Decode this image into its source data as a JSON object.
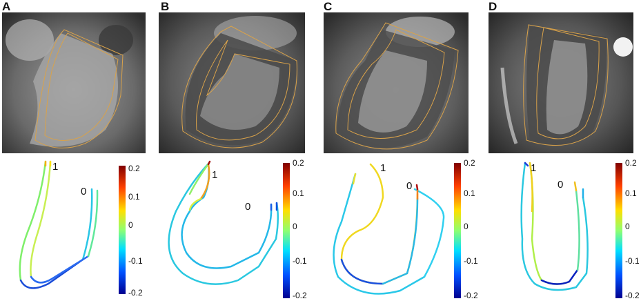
{
  "panels": [
    {
      "letter": "A",
      "point_labels": [
        "1",
        "0"
      ],
      "colorbar_ticks": [
        "0.2",
        "0.1",
        "0",
        "-0.1",
        "-0.2"
      ]
    },
    {
      "letter": "B",
      "point_labels": [
        "1",
        "0"
      ],
      "colorbar_ticks": [
        "0.2",
        "0.1",
        "0",
        "-0.1",
        "-0.2"
      ]
    },
    {
      "letter": "C",
      "point_labels": [
        "1",
        "0"
      ],
      "colorbar_ticks": [
        "0.2",
        "0.1",
        "0",
        "-0.1",
        "-0.2"
      ]
    },
    {
      "letter": "D",
      "point_labels": [
        "1",
        "0"
      ],
      "colorbar_ticks": [
        "0.2",
        "0.1",
        "0",
        "-0.1",
        "-0.2"
      ]
    }
  ],
  "colors": {
    "contour": "#d9a24a",
    "colormap": [
      "#00008f",
      "#0050ff",
      "#00dfff",
      "#8fff70",
      "#ffdf00",
      "#ff4000",
      "#800000"
    ]
  }
}
